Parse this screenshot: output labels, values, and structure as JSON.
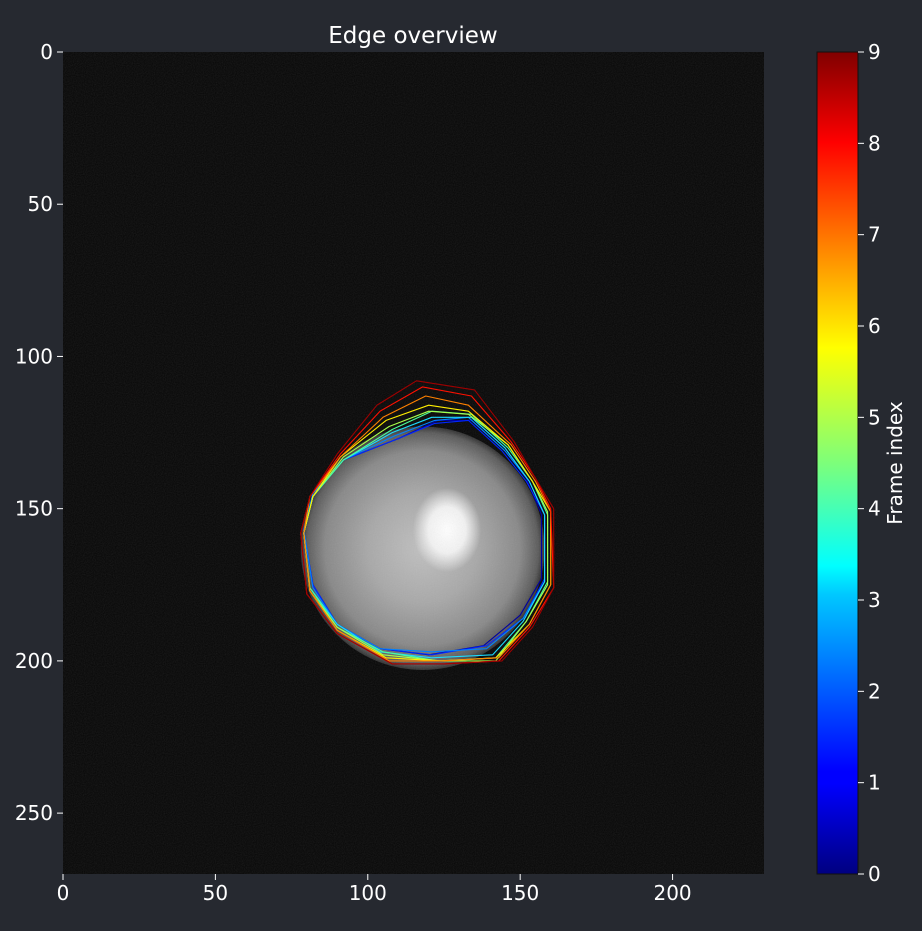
{
  "chart_data": {
    "type": "heatmap",
    "title": "Edge overview",
    "xlabel": "",
    "ylabel": "",
    "xlim": [
      0,
      230
    ],
    "ylim": [
      270,
      0
    ],
    "x_ticks": [
      0,
      50,
      100,
      150,
      200
    ],
    "y_ticks": [
      0,
      50,
      100,
      150,
      200,
      250
    ],
    "image": {
      "description": "grayscale microscopy image",
      "background_color": "#060606",
      "cell_center": [
        118,
        163
      ],
      "cell_radius": [
        40,
        40
      ],
      "bright_spot_center": [
        126,
        157
      ]
    },
    "colorbar": {
      "label": "Frame index",
      "range": [
        0,
        9
      ],
      "ticks": [
        0,
        1,
        2,
        3,
        4,
        5,
        6,
        7,
        8,
        9
      ],
      "colormap": "jet"
    },
    "series": [
      {
        "frame": 0,
        "color": "#0000a0",
        "points": [
          [
            110,
            127
          ],
          [
            123,
            121
          ],
          [
            134,
            121
          ],
          [
            145,
            131
          ],
          [
            152,
            140
          ],
          [
            157,
            152
          ],
          [
            157,
            173
          ],
          [
            150,
            185
          ],
          [
            138,
            195
          ],
          [
            120,
            198
          ],
          [
            104,
            196
          ],
          [
            90,
            188
          ],
          [
            82,
            175
          ],
          [
            79,
            158
          ],
          [
            82,
            145
          ],
          [
            92,
            134
          ]
        ]
      },
      {
        "frame": 1,
        "color": "#0026ff",
        "points": [
          [
            110,
            127
          ],
          [
            122,
            122
          ],
          [
            133,
            121
          ],
          [
            144,
            131
          ],
          [
            152,
            141
          ],
          [
            158,
            152
          ],
          [
            158,
            173
          ],
          [
            151,
            186
          ],
          [
            139,
            195
          ],
          [
            121,
            198
          ],
          [
            104,
            196
          ],
          [
            90,
            188
          ],
          [
            82,
            175
          ],
          [
            79,
            157
          ],
          [
            82,
            145
          ],
          [
            92,
            134
          ]
        ]
      },
      {
        "frame": 2,
        "color": "#0082ff",
        "points": [
          [
            109,
            126
          ],
          [
            122,
            121
          ],
          [
            133,
            120
          ],
          [
            145,
            131
          ],
          [
            153,
            141
          ],
          [
            158,
            152
          ],
          [
            158,
            174
          ],
          [
            151,
            186
          ],
          [
            139,
            196
          ],
          [
            121,
            197
          ],
          [
            104,
            196
          ],
          [
            90,
            188
          ],
          [
            82,
            176
          ],
          [
            79,
            157
          ],
          [
            82,
            145
          ],
          [
            92,
            134
          ]
        ]
      },
      {
        "frame": 3,
        "color": "#1cdcff",
        "points": [
          [
            108,
            125
          ],
          [
            121,
            120
          ],
          [
            134,
            120
          ],
          [
            145,
            130
          ],
          [
            153,
            141
          ],
          [
            158,
            152
          ],
          [
            158,
            174
          ],
          [
            151,
            187
          ],
          [
            141,
            198
          ],
          [
            121,
            199
          ],
          [
            104,
            197
          ],
          [
            90,
            188
          ],
          [
            81,
            176
          ],
          [
            79,
            158
          ],
          [
            82,
            146
          ],
          [
            92,
            134
          ]
        ]
      },
      {
        "frame": 4,
        "color": "#4cff9c",
        "points": [
          [
            108,
            124
          ],
          [
            121,
            118
          ],
          [
            134,
            119
          ],
          [
            146,
            130
          ],
          [
            154,
            141
          ],
          [
            159,
            152
          ],
          [
            159,
            174
          ],
          [
            152,
            187
          ],
          [
            142,
            199
          ],
          [
            123,
            200
          ],
          [
            105,
            197
          ],
          [
            90,
            189
          ],
          [
            81,
            176
          ],
          [
            79,
            158
          ],
          [
            82,
            146
          ],
          [
            92,
            134
          ]
        ]
      },
      {
        "frame": 5,
        "color": "#a8ff4a",
        "points": [
          [
            107,
            123
          ],
          [
            120,
            118
          ],
          [
            133,
            119
          ],
          [
            146,
            129
          ],
          [
            154,
            141
          ],
          [
            159,
            151
          ],
          [
            159,
            175
          ],
          [
            152,
            187
          ],
          [
            142,
            200
          ],
          [
            124,
            200
          ],
          [
            105,
            198
          ],
          [
            90,
            189
          ],
          [
            81,
            177
          ],
          [
            79,
            158
          ],
          [
            82,
            146
          ],
          [
            92,
            133
          ]
        ]
      },
      {
        "frame": 6,
        "color": "#ffee00",
        "points": [
          [
            106,
            121
          ],
          [
            120,
            116
          ],
          [
            133,
            118
          ],
          [
            146,
            129
          ],
          [
            154,
            141
          ],
          [
            160,
            151
          ],
          [
            160,
            175
          ],
          [
            153,
            188
          ],
          [
            142,
            199
          ],
          [
            124,
            200
          ],
          [
            106,
            199
          ],
          [
            90,
            190
          ],
          [
            81,
            177
          ],
          [
            79,
            158
          ],
          [
            82,
            146
          ],
          [
            91,
            133
          ]
        ]
      },
      {
        "frame": 7,
        "color": "#ff8000",
        "points": [
          [
            105,
            120
          ],
          [
            119,
            113
          ],
          [
            133,
            116
          ],
          [
            147,
            129
          ],
          [
            155,
            141
          ],
          [
            160,
            151
          ],
          [
            160,
            175
          ],
          [
            153,
            188
          ],
          [
            143,
            199
          ],
          [
            124,
            200
          ],
          [
            107,
            200
          ],
          [
            90,
            190
          ],
          [
            81,
            177
          ],
          [
            79,
            158
          ],
          [
            81,
            146
          ],
          [
            91,
            133
          ]
        ]
      },
      {
        "frame": 8,
        "color": "#ff1000",
        "points": [
          [
            104,
            118
          ],
          [
            118,
            110
          ],
          [
            134,
            113
          ],
          [
            147,
            128
          ],
          [
            155,
            140
          ],
          [
            160,
            150
          ],
          [
            161,
            176
          ],
          [
            153,
            189
          ],
          [
            143,
            200
          ],
          [
            125,
            201
          ],
          [
            108,
            201
          ],
          [
            90,
            191
          ],
          [
            80,
            178
          ],
          [
            78,
            158
          ],
          [
            81,
            146
          ],
          [
            91,
            132
          ]
        ]
      },
      {
        "frame": 9,
        "color": "#9e0000",
        "points": [
          [
            103,
            116
          ],
          [
            116,
            108
          ],
          [
            135,
            111
          ],
          [
            148,
            128
          ],
          [
            155,
            140
          ],
          [
            161,
            150
          ],
          [
            161,
            176
          ],
          [
            154,
            189
          ],
          [
            144,
            200
          ],
          [
            125,
            201
          ],
          [
            108,
            201
          ],
          [
            90,
            191
          ],
          [
            80,
            178
          ],
          [
            78,
            158
          ],
          [
            81,
            146
          ],
          [
            90,
            132
          ]
        ]
      }
    ]
  }
}
